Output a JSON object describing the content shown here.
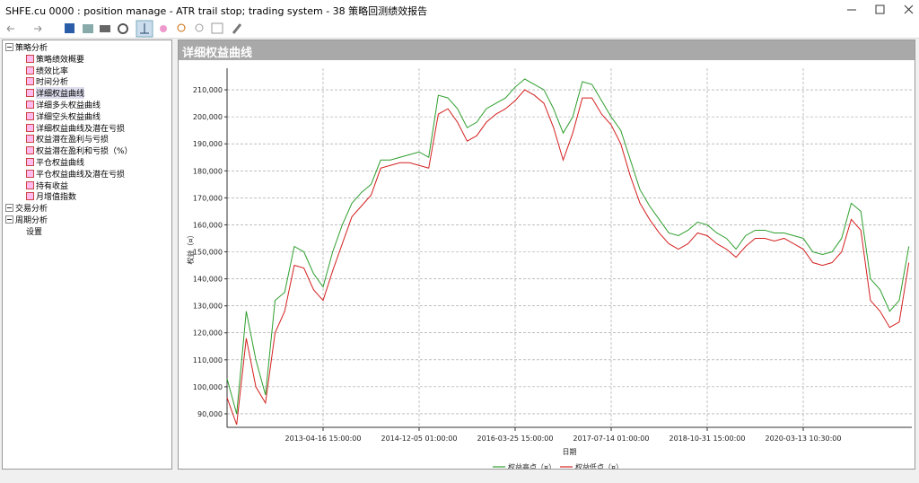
{
  "window": {
    "title": "SHFE.cu 0000 : position manage - ATR trail stop; trading system - 38 策略回测绩效报告"
  },
  "tree": {
    "groups": [
      {
        "label": "策略分析",
        "items": [
          "策略绩效概要",
          "绩效比率",
          "时间分析",
          "详细权益曲线",
          "详细多头权益曲线",
          "详细空头权益曲线",
          "详细权益曲线及潜在亏损",
          "权益潜在盈利与亏损",
          "权益潜在盈利和亏损（%）",
          "平仓权益曲线",
          "平仓权益曲线及潜在亏损",
          "持有收益",
          "月增值指数"
        ]
      },
      {
        "label": "交易分析",
        "items": []
      },
      {
        "label": "周期分析",
        "items": []
      },
      {
        "label": "设置",
        "items": []
      }
    ]
  },
  "panel": {
    "title": "详细权益曲线"
  },
  "chart_data": {
    "type": "line",
    "x_label": "日期",
    "y_label": "权益（¤）",
    "categories": [
      null,
      null,
      null,
      null,
      null,
      null,
      null,
      null,
      null,
      null,
      "2013-04-16 15:00:00",
      null,
      null,
      null,
      null,
      null,
      null,
      null,
      null,
      null,
      "2014-12-05 01:00:00",
      null,
      null,
      null,
      null,
      null,
      null,
      null,
      null,
      null,
      "2016-03-25 15:00:00",
      null,
      null,
      null,
      null,
      null,
      null,
      null,
      null,
      null,
      "2017-07-14 01:00:00",
      null,
      null,
      null,
      null,
      null,
      null,
      null,
      null,
      null,
      "2018-10-31 15:00:00",
      null,
      null,
      null,
      null,
      null,
      null,
      null,
      null,
      null,
      "2020-03-13 10:30:00",
      null,
      null,
      null,
      null,
      null,
      null,
      null,
      null,
      null,
      null,
      null
    ],
    "series": [
      {
        "name": "权益高点（¤）",
        "color": "#2e9e2e",
        "values": [
          103000,
          90000,
          128000,
          110000,
          97000,
          132000,
          135000,
          152000,
          150000,
          142000,
          137000,
          150000,
          160000,
          168000,
          172000,
          175000,
          184000,
          184000,
          185000,
          186000,
          187000,
          185000,
          208000,
          207000,
          203000,
          196000,
          198000,
          203000,
          205000,
          207000,
          211000,
          214000,
          212000,
          210000,
          203000,
          194000,
          200000,
          213000,
          212000,
          206000,
          200000,
          195000,
          184000,
          173000,
          167000,
          162000,
          157000,
          156000,
          158000,
          161000,
          160000,
          157000,
          155000,
          151000,
          156000,
          158000,
          158000,
          157000,
          157000,
          156000,
          155000,
          150000,
          149000,
          150000,
          155000,
          168000,
          165000,
          140000,
          136000,
          128000,
          132000,
          152000
        ]
      },
      {
        "name": "权益低点（¤）",
        "color": "#d42020",
        "values": [
          96000,
          86000,
          118000,
          100000,
          94000,
          120000,
          128000,
          145000,
          144000,
          136000,
          132000,
          143000,
          153000,
          163000,
          167000,
          171000,
          181000,
          182000,
          183000,
          183000,
          182000,
          181000,
          201000,
          203000,
          198000,
          191000,
          193000,
          198000,
          201000,
          203000,
          206000,
          210000,
          208000,
          205000,
          196000,
          184000,
          194000,
          207000,
          207000,
          201000,
          197000,
          190000,
          178000,
          168000,
          162000,
          157000,
          153000,
          151000,
          153000,
          157000,
          156000,
          153000,
          151000,
          148000,
          152000,
          155000,
          155000,
          154000,
          155000,
          153000,
          151000,
          146000,
          145000,
          146000,
          150000,
          162000,
          158000,
          132000,
          128000,
          122000,
          124000,
          146000
        ]
      }
    ],
    "ylim": [
      85000,
      218000
    ],
    "yticks": [
      {
        "value": 90000,
        "label": "90,000"
      },
      {
        "value": 100000,
        "label": "100,000"
      },
      {
        "value": 110000,
        "label": "110,000"
      },
      {
        "value": 120000,
        "label": "120,000"
      },
      {
        "value": 130000,
        "label": "130,000"
      },
      {
        "value": 140000,
        "label": "140,000"
      },
      {
        "value": 150000,
        "label": "150,000"
      },
      {
        "value": 160000,
        "label": "160,000"
      },
      {
        "value": 170000,
        "label": "170,000"
      },
      {
        "value": 180000,
        "label": "180,000"
      },
      {
        "value": 190000,
        "label": "190,000"
      },
      {
        "value": 200000,
        "label": "200,000"
      },
      {
        "value": 210000,
        "label": "210,000"
      }
    ],
    "grid": true
  }
}
